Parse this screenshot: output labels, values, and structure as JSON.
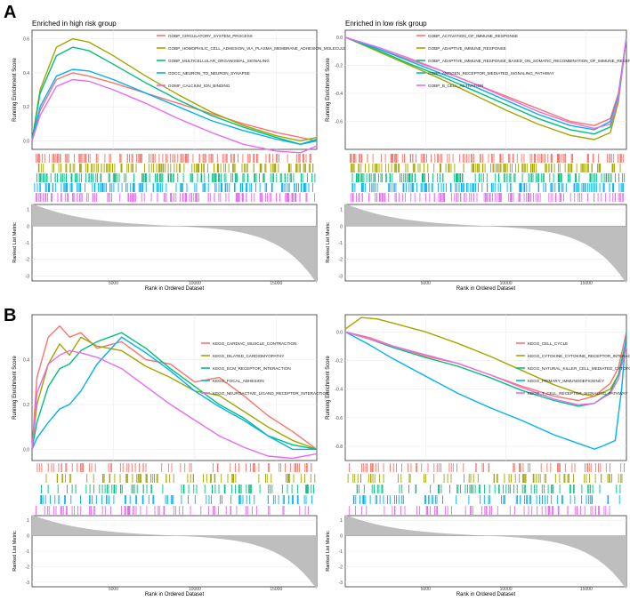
{
  "panels": [
    {
      "letter": "A"
    },
    {
      "letter": "B"
    }
  ],
  "colors": {
    "red": "#f8766d",
    "olive": "#a3a500",
    "green": "#00bf7d",
    "blue": "#00b0f6",
    "magenta": "#e76bf3",
    "grey": "#bebebe",
    "panel_border": "#333333",
    "grid": "#ebebeb"
  },
  "chart_data": [
    {
      "type": "line",
      "panel": "A",
      "title": "Enriched in high risk group",
      "xlabel": "Rank in Ordered Dataset",
      "ylabel": "Running Enrichment Score",
      "xlim": [
        0,
        17500
      ],
      "ylim": [
        -0.05,
        0.65
      ],
      "yticks": [
        "0.0",
        "0.2",
        "0.4",
        "0.6"
      ],
      "xticks": [
        "5000",
        "10000",
        "15000"
      ],
      "metric_ylabel": "Ranked List Metric",
      "metric_yticks": [
        "1",
        "0",
        "-1",
        "-2",
        "-3"
      ],
      "metric_ylim": [
        -3.3,
        1.3
      ],
      "legend_position": "top-right",
      "series": [
        {
          "name": "GOBP_CIRCULATORY_SYSTEM_PROCESS",
          "color_key": "red",
          "x": [
            0,
            500,
            1500,
            2500,
            3500,
            5000,
            7000,
            9000,
            11000,
            13000,
            15000,
            16500,
            17500
          ],
          "values": [
            0,
            0.18,
            0.36,
            0.4,
            0.38,
            0.34,
            0.28,
            0.22,
            0.16,
            0.1,
            0.05,
            0.02,
            0.0
          ]
        },
        {
          "name": "GOBP_HOMOPHILIC_CELL_ADHESION_VIA_PLASMA_MEMBRANE_ADHESION_MOLECULES",
          "color_key": "olive",
          "x": [
            0,
            500,
            1500,
            2500,
            3500,
            5000,
            7000,
            9000,
            11000,
            13000,
            15000,
            16500,
            17500
          ],
          "values": [
            0,
            0.3,
            0.55,
            0.6,
            0.58,
            0.5,
            0.38,
            0.27,
            0.17,
            0.09,
            0.03,
            0.0,
            0.02
          ]
        },
        {
          "name": "GOBP_MULTICELLULAR_ORGANISMAL_SIGNALING",
          "color_key": "green",
          "x": [
            0,
            500,
            1500,
            2500,
            3500,
            5000,
            7000,
            9000,
            11000,
            13000,
            15000,
            16500,
            17500
          ],
          "values": [
            0,
            0.28,
            0.5,
            0.55,
            0.53,
            0.45,
            0.34,
            0.24,
            0.15,
            0.08,
            0.02,
            -0.02,
            0.0
          ]
        },
        {
          "name": "GOCC_NEURON_TO_NEURON_SYNAPSE",
          "color_key": "blue",
          "x": [
            0,
            500,
            1500,
            2500,
            3500,
            5000,
            7000,
            9000,
            11000,
            13000,
            15000,
            16500,
            17500
          ],
          "values": [
            0,
            0.2,
            0.38,
            0.42,
            0.41,
            0.36,
            0.28,
            0.2,
            0.12,
            0.06,
            0.01,
            -0.02,
            0.01
          ]
        },
        {
          "name": "GOMF_CALCIUM_ION_BINDING",
          "color_key": "magenta",
          "x": [
            0,
            500,
            1500,
            2500,
            3500,
            5000,
            7000,
            9000,
            11000,
            13000,
            15000,
            16500,
            17500
          ],
          "values": [
            0,
            0.15,
            0.32,
            0.36,
            0.35,
            0.3,
            0.22,
            0.13,
            0.05,
            -0.02,
            -0.06,
            -0.07,
            -0.03
          ]
        }
      ]
    },
    {
      "type": "line",
      "panel": "A",
      "title": "Enriched in low risk group",
      "xlabel": "Rank in Ordered Dataset",
      "ylabel": "Running Enrichment Score",
      "xlim": [
        0,
        17500
      ],
      "ylim": [
        -0.8,
        0.05
      ],
      "yticks": [
        "0.0",
        "-0.2",
        "-0.4",
        "-0.6"
      ],
      "xticks": [
        "5000",
        "10000",
        "15000"
      ],
      "metric_ylabel": "Ranked List Metric",
      "metric_yticks": [
        "1",
        "0",
        "-1",
        "-2",
        "-3"
      ],
      "metric_ylim": [
        -3.3,
        1.3
      ],
      "legend_position": "top-left",
      "series": [
        {
          "name": "GOBP_ACTIVATION_OF_IMMUNE_RESPONSE",
          "color_key": "red",
          "x": [
            0,
            2000,
            4000,
            6000,
            8000,
            10000,
            12000,
            14000,
            15500,
            16500,
            17000,
            17500
          ],
          "values": [
            0,
            -0.08,
            -0.16,
            -0.24,
            -0.33,
            -0.42,
            -0.51,
            -0.6,
            -0.63,
            -0.58,
            -0.4,
            0.0
          ]
        },
        {
          "name": "GOBP_ADAPTIVE_IMMUNE_RESPONSE",
          "color_key": "olive",
          "x": [
            0,
            2000,
            4000,
            6000,
            8000,
            10000,
            12000,
            14000,
            15500,
            16500,
            17000,
            17500
          ],
          "values": [
            0,
            -0.1,
            -0.2,
            -0.3,
            -0.41,
            -0.52,
            -0.62,
            -0.7,
            -0.73,
            -0.68,
            -0.46,
            0.0
          ]
        },
        {
          "name": "GOBP_ADAPTIVE_IMMUNE_RESPONSE_BASED_ON_SOMATIC_RECOMBINATION_OF_IMMUNE_RECEPTORS",
          "color_key": "green",
          "x": [
            0,
            2000,
            4000,
            6000,
            8000,
            10000,
            12000,
            14000,
            15500,
            16500,
            17000,
            17500
          ],
          "values": [
            0,
            -0.09,
            -0.19,
            -0.28,
            -0.38,
            -0.48,
            -0.58,
            -0.66,
            -0.69,
            -0.64,
            -0.43,
            0.0
          ]
        },
        {
          "name": "GOBP_ANTIGEN_RECEPTOR_MEDIATED_SIGNALING_PATHWAY",
          "color_key": "blue",
          "x": [
            0,
            2000,
            4000,
            6000,
            8000,
            10000,
            12000,
            14000,
            15500,
            16500,
            17000,
            17500
          ],
          "values": [
            0,
            -0.08,
            -0.17,
            -0.26,
            -0.35,
            -0.45,
            -0.55,
            -0.63,
            -0.66,
            -0.6,
            -0.42,
            0.0
          ]
        },
        {
          "name": "GOBP_B_CELL_ACTIVATION",
          "color_key": "magenta",
          "x": [
            0,
            2000,
            4000,
            6000,
            8000,
            10000,
            12000,
            14000,
            15500,
            16500,
            17000,
            17500
          ],
          "values": [
            0,
            -0.07,
            -0.15,
            -0.24,
            -0.33,
            -0.43,
            -0.53,
            -0.61,
            -0.65,
            -0.62,
            -0.44,
            0.0
          ]
        }
      ]
    },
    {
      "type": "line",
      "panel": "B",
      "title": "Enriched in high risk group",
      "xlabel": "Rank in Ordered Dataset",
      "ylabel": "Running Enrichment Score",
      "xlim": [
        0,
        17500
      ],
      "ylim": [
        -0.05,
        0.6
      ],
      "yticks": [
        "0.0",
        "0.2",
        "0.4"
      ],
      "xticks": [
        "5000",
        "10000",
        "15000"
      ],
      "metric_ylabel": "Ranked List Metric",
      "metric_yticks": [
        "1",
        "0",
        "-1",
        "-2",
        "-3"
      ],
      "metric_ylim": [
        -3.3,
        1.3
      ],
      "legend_position": "top-right",
      "series": [
        {
          "name": "KEGG_CARDIAC_MUSCLE_CONTRACTION",
          "color_key": "red",
          "x": [
            0,
            300,
            1000,
            1700,
            2300,
            3000,
            4000,
            5500,
            7000,
            8500,
            10000,
            11500,
            13000,
            14500,
            16000,
            17500
          ],
          "values": [
            0,
            0.32,
            0.5,
            0.55,
            0.5,
            0.52,
            0.45,
            0.48,
            0.4,
            0.38,
            0.3,
            0.32,
            0.24,
            0.15,
            0.08,
            0.0
          ]
        },
        {
          "name": "KEGG_DILATED_CARDIOMYOPATHY",
          "color_key": "olive",
          "x": [
            0,
            300,
            1000,
            1700,
            2300,
            3000,
            4000,
            5500,
            7000,
            8500,
            10000,
            11500,
            13000,
            14500,
            16000,
            17500
          ],
          "values": [
            0,
            0.2,
            0.38,
            0.47,
            0.42,
            0.5,
            0.46,
            0.44,
            0.37,
            0.32,
            0.26,
            0.24,
            0.17,
            0.1,
            0.04,
            0.0
          ]
        },
        {
          "name": "KEGG_ECM_RECEPTOR_INTERACTION",
          "color_key": "green",
          "x": [
            0,
            300,
            1000,
            1700,
            2300,
            3000,
            4000,
            5500,
            7000,
            8500,
            10000,
            11500,
            13000,
            14500,
            16000,
            17500
          ],
          "values": [
            0,
            0.12,
            0.28,
            0.36,
            0.38,
            0.44,
            0.48,
            0.52,
            0.45,
            0.36,
            0.28,
            0.2,
            0.14,
            0.06,
            0.02,
            0.0
          ]
        },
        {
          "name": "KEGG_FOCAL_ADHESION",
          "color_key": "blue",
          "x": [
            0,
            300,
            1000,
            1700,
            2300,
            3000,
            4000,
            5500,
            7000,
            8500,
            10000,
            11500,
            13000,
            14500,
            16000,
            17500
          ],
          "values": [
            0,
            0.05,
            0.12,
            0.18,
            0.2,
            0.26,
            0.38,
            0.5,
            0.43,
            0.35,
            0.26,
            0.19,
            0.13,
            0.06,
            0.0,
            0.0
          ]
        },
        {
          "name": "KEGG_NEUROACTIVE_LIGAND_RECEPTOR_INTERACTION",
          "color_key": "magenta",
          "x": [
            0,
            300,
            1000,
            1700,
            2300,
            3000,
            4000,
            5500,
            7000,
            8500,
            10000,
            11500,
            13000,
            14500,
            16000,
            17500
          ],
          "values": [
            0,
            0.25,
            0.38,
            0.42,
            0.44,
            0.43,
            0.41,
            0.36,
            0.28,
            0.2,
            0.13,
            0.06,
            0.01,
            -0.03,
            -0.04,
            -0.02
          ]
        }
      ]
    },
    {
      "type": "line",
      "panel": "B",
      "title": "Enriched in low risk group",
      "xlabel": "Rank in Ordered Dataset",
      "ylabel": "Running Enrichment Score",
      "xlim": [
        0,
        17500
      ],
      "ylim": [
        -0.9,
        0.12
      ],
      "yticks": [
        "0.0",
        "-0.2",
        "-0.4",
        "-0.6",
        "-0.8"
      ],
      "xticks": [
        "5000",
        "10000",
        "15000"
      ],
      "metric_ylabel": "Ranked List Metric",
      "metric_yticks": [
        "1",
        "0",
        "-1",
        "-2",
        "-3"
      ],
      "metric_ylim": [
        -3.3,
        1.3
      ],
      "legend_position": "top-right",
      "series": [
        {
          "name": "KEGG_CELL_CYCLE",
          "color_key": "red",
          "x": [
            0,
            1500,
            3000,
            5000,
            7000,
            9000,
            11000,
            13000,
            14500,
            15500,
            16500,
            17000,
            17500
          ],
          "values": [
            0,
            -0.04,
            -0.1,
            -0.17,
            -0.22,
            -0.3,
            -0.38,
            -0.45,
            -0.48,
            -0.45,
            -0.36,
            -0.25,
            0.0
          ]
        },
        {
          "name": "KEGG_CYTOKINE_CYTOKINE_RECEPTOR_INTERACTION",
          "color_key": "olive",
          "x": [
            0,
            1000,
            2000,
            3000,
            5000,
            7000,
            9000,
            11000,
            13000,
            14500,
            15500,
            16500,
            17000,
            17500
          ],
          "values": [
            0.02,
            0.1,
            0.09,
            0.06,
            0.0,
            -0.08,
            -0.17,
            -0.27,
            -0.37,
            -0.43,
            -0.45,
            -0.4,
            -0.3,
            -0.08
          ]
        },
        {
          "name": "KEGG_NATURAL_KILLER_CELL_MEDIATED_CYTOTOXICITY",
          "color_key": "green",
          "x": [
            0,
            1500,
            3000,
            5000,
            7000,
            9000,
            11000,
            13000,
            14500,
            15500,
            16500,
            17000,
            17500
          ],
          "values": [
            0,
            -0.05,
            -0.11,
            -0.18,
            -0.24,
            -0.32,
            -0.41,
            -0.48,
            -0.52,
            -0.5,
            -0.42,
            -0.3,
            -0.05
          ]
        },
        {
          "name": "KEGG_PRIMARY_IMMUNODEFICIENCY",
          "color_key": "blue",
          "x": [
            0,
            1500,
            3000,
            5000,
            7000,
            9000,
            11000,
            13000,
            14500,
            15500,
            16000,
            16800,
            17200,
            17500
          ],
          "values": [
            0,
            -0.09,
            -0.19,
            -0.31,
            -0.43,
            -0.53,
            -0.62,
            -0.72,
            -0.78,
            -0.82,
            -0.8,
            -0.76,
            -0.4,
            0.0
          ]
        },
        {
          "name": "KEGG_T_CELL_RECEPTOR_SIGNALING_PATHWAY",
          "color_key": "magenta",
          "x": [
            0,
            1500,
            3000,
            5000,
            7000,
            9000,
            11000,
            13000,
            14500,
            15500,
            16500,
            17000,
            17500
          ],
          "values": [
            0,
            -0.05,
            -0.1,
            -0.16,
            -0.22,
            -0.3,
            -0.39,
            -0.47,
            -0.51,
            -0.5,
            -0.43,
            -0.33,
            -0.1
          ]
        }
      ]
    }
  ]
}
